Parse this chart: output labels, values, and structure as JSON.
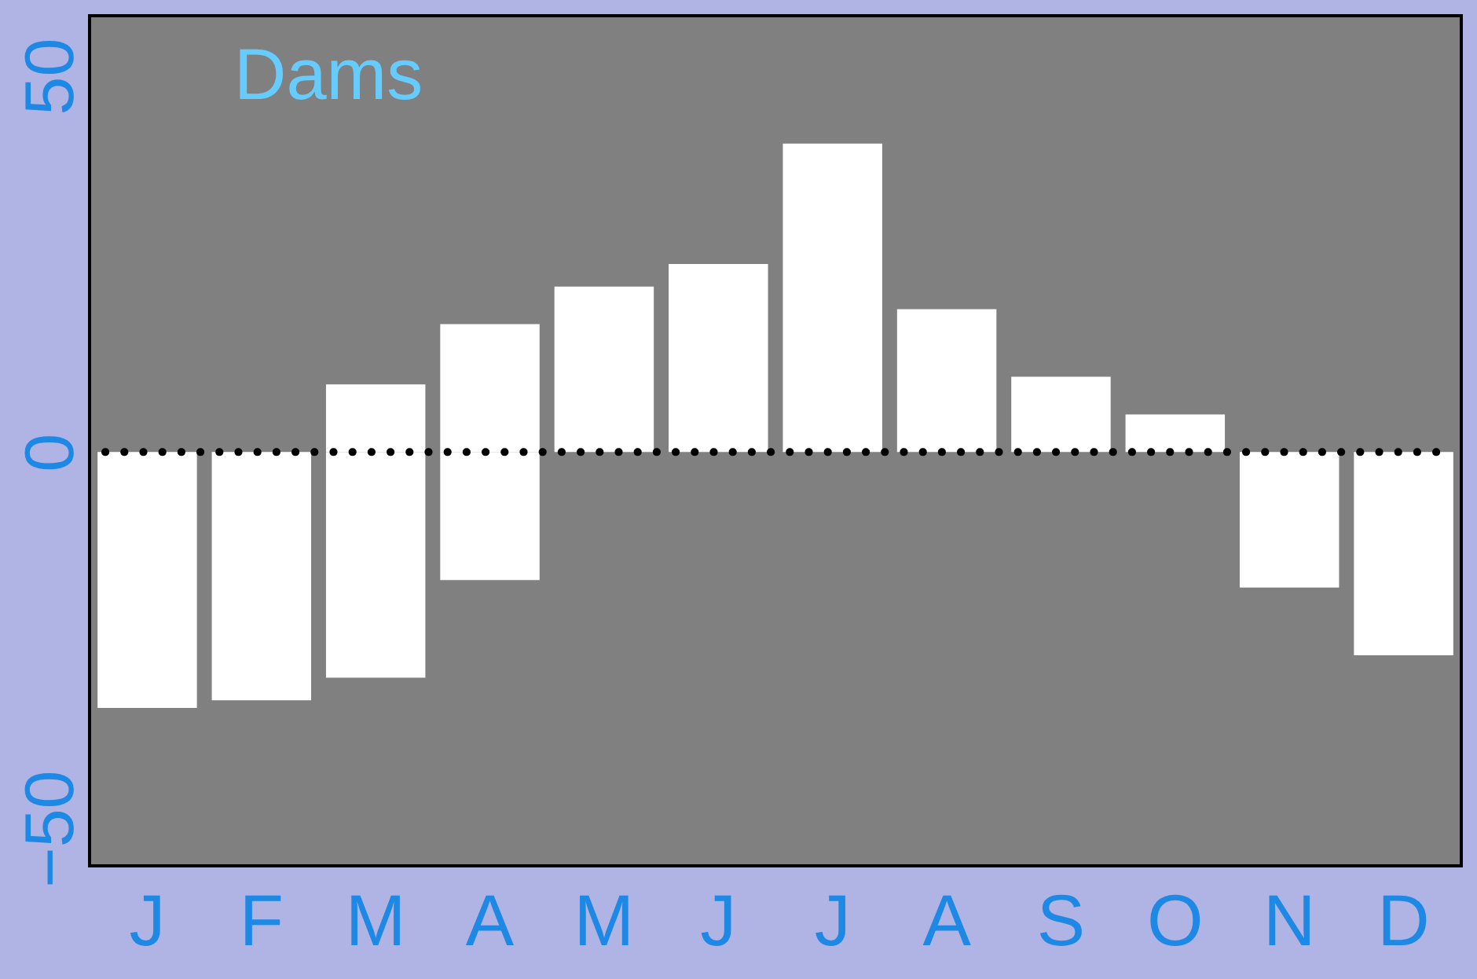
{
  "chart_data": {
    "type": "bar",
    "title": "Dams",
    "categories": [
      "J",
      "F",
      "M",
      "A",
      "M",
      "J",
      "J",
      "A",
      "S",
      "O",
      "N",
      "D"
    ],
    "series": [
      {
        "color": "#ffffff",
        "values": [
          null,
          null,
          9,
          17,
          22,
          25,
          41,
          19,
          10,
          5,
          null,
          null
        ]
      },
      {
        "color": "#ffffff",
        "values": [
          -34,
          -33,
          -30,
          -17,
          null,
          null,
          null,
          null,
          null,
          null,
          -18,
          -27
        ]
      }
    ],
    "stacked": true,
    "ylim": [
      -55,
      58
    ],
    "yticks": [
      -50,
      0,
      50
    ],
    "ref_lines": [
      {
        "axis": "y",
        "value": 0,
        "line_style": "dotted",
        "color": "#000000"
      }
    ]
  }
}
